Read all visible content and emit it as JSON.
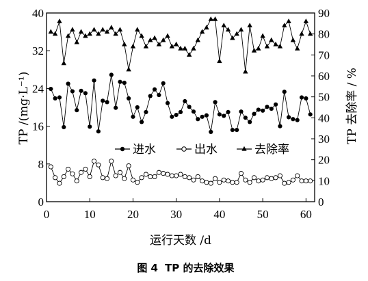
{
  "caption": {
    "fig_label": "图 4",
    "title": "TP 的去除效果"
  },
  "chart_data": {
    "type": "line",
    "xlabel": "运行天数 /d",
    "ylabel_left": "TP /(mg·L⁻¹)",
    "ylabel_right": "TP 去除率 / %",
    "xlim": [
      0,
      62
    ],
    "ylim_left": [
      0,
      40
    ],
    "ylim_right": [
      0,
      90
    ],
    "x_ticks": [
      "0",
      "10",
      "20",
      "30",
      "40",
      "50",
      "60"
    ],
    "y_ticks_left": [
      "0",
      "8",
      "16",
      "24",
      "32",
      "40"
    ],
    "y_ticks_right": [
      "0",
      "10",
      "20",
      "30",
      "40",
      "50",
      "60",
      "70",
      "80",
      "90"
    ],
    "legend_placement": "center",
    "x": [
      1,
      2,
      3,
      4,
      5,
      6,
      7,
      8,
      9,
      10,
      11,
      12,
      13,
      14,
      15,
      16,
      17,
      18,
      19,
      20,
      21,
      22,
      23,
      24,
      25,
      26,
      27,
      28,
      29,
      30,
      31,
      32,
      33,
      34,
      35,
      36,
      37,
      38,
      39,
      40,
      41,
      42,
      43,
      44,
      45,
      46,
      47,
      48,
      49,
      50,
      51,
      52,
      53,
      54,
      55,
      56,
      57,
      58,
      59,
      60,
      61
    ],
    "series": [
      {
        "name": "进水",
        "axis": "left",
        "marker": "filled-circle",
        "values": [
          23.9,
          21.9,
          22.1,
          15.8,
          25.0,
          23.4,
          19.4,
          23.5,
          23.0,
          15.9,
          25.7,
          14.9,
          21.4,
          21.1,
          26.9,
          19.9,
          25.4,
          25.2,
          21.9,
          18.0,
          20.0,
          16.9,
          19.0,
          22.4,
          23.8,
          22.6,
          25.1,
          20.9,
          18.0,
          18.4,
          19.0,
          21.3,
          20.1,
          19.1,
          17.5,
          18.0,
          18.3,
          14.8,
          21.1,
          18.5,
          18.2,
          19.0,
          15.2,
          15.2,
          19.1,
          17.8,
          16.9,
          18.6,
          19.5,
          19.3,
          20.1,
          19.7,
          20.6,
          16.0,
          23.3,
          17.9,
          17.5,
          17.3,
          22.1,
          21.9,
          18.5
        ]
      },
      {
        "name": "出水",
        "axis": "left",
        "marker": "open-circle",
        "values": [
          7.4,
          5.1,
          3.9,
          5.3,
          6.9,
          5.9,
          4.4,
          6.2,
          6.9,
          5.3,
          8.6,
          7.8,
          5.1,
          4.9,
          8.6,
          5.5,
          6.2,
          4.9,
          7.6,
          4.6,
          4.1,
          5.1,
          5.8,
          5.3,
          5.3,
          6.2,
          6.0,
          5.8,
          5.5,
          5.5,
          5.8,
          5.3,
          5.1,
          4.6,
          5.3,
          4.4,
          4.1,
          3.9,
          4.9,
          4.1,
          4.6,
          4.4,
          4.1,
          4.1,
          6.0,
          4.6,
          4.1,
          5.1,
          4.4,
          4.6,
          5.1,
          4.9,
          5.1,
          5.5,
          3.9,
          4.1,
          4.6,
          5.5,
          4.4,
          4.4,
          4.4
        ]
      },
      {
        "name": "去除率",
        "axis": "right",
        "marker": "filled-triangle",
        "values": [
          81,
          80,
          86,
          66,
          79,
          82,
          76,
          81,
          79,
          80,
          82,
          80,
          82,
          81,
          83,
          80,
          82,
          75,
          63,
          74,
          82,
          79,
          74,
          77,
          78,
          75,
          77,
          79,
          74,
          75,
          73,
          73,
          70,
          73,
          77,
          81,
          83,
          87,
          87,
          67,
          84,
          82,
          78,
          80,
          82,
          62,
          84,
          72,
          73,
          79,
          74,
          77,
          75,
          74,
          84,
          86,
          77,
          73,
          80,
          86,
          80
        ]
      }
    ]
  }
}
